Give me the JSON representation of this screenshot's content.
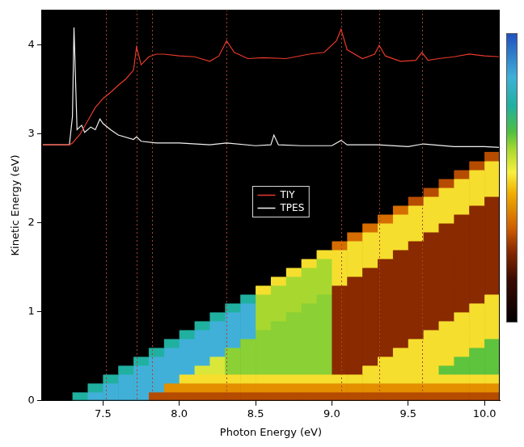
{
  "chart_data": {
    "type": "heatmap",
    "x_label": "Photon Energy (eV)",
    "y_label": "Kinetic Energy (eV)",
    "xlim": [
      7.1,
      10.1
    ],
    "xticks": [
      {
        "value": 7.5,
        "label": "7.5"
      },
      {
        "value": 8,
        "label": "8.0"
      },
      {
        "value": 8.5,
        "label": "8.5"
      },
      {
        "value": 9,
        "label": "9.0"
      },
      {
        "value": 9.5,
        "label": "9.5"
      },
      {
        "value": 10,
        "label": "10.0"
      }
    ],
    "ylim": [
      0,
      4.4
    ],
    "yticks": [
      0,
      1,
      2,
      3,
      4
    ],
    "grid": false,
    "legend": "center",
    "heatmap": {
      "x_bins": [
        7.3,
        7.4,
        7.5,
        7.6,
        7.7,
        7.8,
        7.9,
        8.0,
        8.1,
        8.2,
        8.3,
        8.4,
        8.5,
        8.6,
        8.7,
        8.8,
        8.9,
        9.0,
        9.1,
        9.2,
        9.3,
        9.4,
        9.5,
        9.6,
        9.7,
        9.8,
        9.9,
        10.0,
        10.1
      ],
      "y_bins": [
        0,
        0.1,
        0.2,
        0.3,
        0.4,
        0.5,
        0.6,
        0.7,
        0.8,
        0.9,
        1.0,
        1.1,
        1.2,
        1.3,
        1.4,
        1.5,
        1.6,
        1.7,
        1.8,
        1.9,
        2.0,
        2.1,
        2.2,
        2.3,
        2.4,
        2.5,
        2.6,
        2.7,
        2.8
      ],
      "z": [
        [
          0.75,
          0.85,
          0.85,
          0.85,
          0.85,
          0.3,
          0.3,
          0.3,
          0.3,
          0.3,
          0.3,
          0.3,
          0.3,
          0.3,
          0.3,
          0.3,
          0.3,
          0.3,
          0.3,
          0.3,
          0.3,
          0.3,
          0.3,
          0.3,
          0.3,
          0.3,
          0.3,
          0.3
        ],
        [
          0,
          0.75,
          0.85,
          0.85,
          0.85,
          0.85,
          0.4,
          0.4,
          0.4,
          0.4,
          0.4,
          0.4,
          0.4,
          0.4,
          0.4,
          0.4,
          0.4,
          0.4,
          0.4,
          0.4,
          0.4,
          0.4,
          0.4,
          0.4,
          0.4,
          0.4,
          0.4,
          0.4
        ],
        [
          0,
          0,
          0.75,
          0.85,
          0.85,
          0.85,
          0.85,
          0.5,
          0.5,
          0.5,
          0.5,
          0.5,
          0.5,
          0.5,
          0.5,
          0.5,
          0.5,
          0.5,
          0.5,
          0.5,
          0.5,
          0.5,
          0.5,
          0.5,
          0.5,
          0.5,
          0.5,
          0.5
        ],
        [
          0,
          0,
          0,
          0.75,
          0.85,
          0.85,
          0.85,
          0.85,
          0.55,
          0.55,
          0.62,
          0.62,
          0.62,
          0.62,
          0.62,
          0.62,
          0.62,
          0.25,
          0.25,
          0.5,
          0.5,
          0.5,
          0.5,
          0.5,
          0.65,
          0.65,
          0.65,
          0.65
        ],
        [
          0,
          0,
          0,
          0,
          0.75,
          0.85,
          0.85,
          0.85,
          0.85,
          0.55,
          0.62,
          0.62,
          0.62,
          0.62,
          0.62,
          0.62,
          0.62,
          0.25,
          0.25,
          0.25,
          0.5,
          0.5,
          0.5,
          0.5,
          0.5,
          0.65,
          0.65,
          0.65
        ],
        [
          0,
          0,
          0,
          0,
          0,
          0.75,
          0.85,
          0.85,
          0.85,
          0.85,
          0.62,
          0.62,
          0.62,
          0.62,
          0.62,
          0.62,
          0.62,
          0.25,
          0.25,
          0.25,
          0.25,
          0.5,
          0.5,
          0.5,
          0.5,
          0.5,
          0.65,
          0.65
        ],
        [
          0,
          0,
          0,
          0,
          0,
          0,
          0.75,
          0.85,
          0.85,
          0.85,
          0.85,
          0.62,
          0.62,
          0.62,
          0.62,
          0.62,
          0.62,
          0.25,
          0.25,
          0.25,
          0.25,
          0.25,
          0.5,
          0.5,
          0.5,
          0.5,
          0.5,
          0.65
        ],
        [
          0,
          0,
          0,
          0,
          0,
          0,
          0,
          0.75,
          0.85,
          0.85,
          0.85,
          0.85,
          0.62,
          0.62,
          0.62,
          0.62,
          0.62,
          0.25,
          0.25,
          0.25,
          0.25,
          0.25,
          0.25,
          0.5,
          0.5,
          0.5,
          0.5,
          0.5
        ],
        [
          0,
          0,
          0,
          0,
          0,
          0,
          0,
          0,
          0.75,
          0.85,
          0.85,
          0.85,
          0.6,
          0.62,
          0.62,
          0.62,
          0.62,
          0.25,
          0.25,
          0.25,
          0.25,
          0.25,
          0.25,
          0.25,
          0.5,
          0.5,
          0.5,
          0.5
        ],
        [
          0,
          0,
          0,
          0,
          0,
          0,
          0,
          0,
          0,
          0.75,
          0.85,
          0.85,
          0.6,
          0.6,
          0.62,
          0.62,
          0.62,
          0.25,
          0.25,
          0.25,
          0.25,
          0.25,
          0.25,
          0.25,
          0.25,
          0.5,
          0.5,
          0.5
        ],
        [
          0,
          0,
          0,
          0,
          0,
          0,
          0,
          0,
          0,
          0,
          0.75,
          0.85,
          0.6,
          0.6,
          0.6,
          0.62,
          0.62,
          0.25,
          0.25,
          0.25,
          0.25,
          0.25,
          0.25,
          0.25,
          0.25,
          0.25,
          0.5,
          0.5
        ],
        [
          0,
          0,
          0,
          0,
          0,
          0,
          0,
          0,
          0,
          0,
          0,
          0.75,
          0.6,
          0.6,
          0.6,
          0.6,
          0.62,
          0.25,
          0.25,
          0.25,
          0.25,
          0.25,
          0.25,
          0.25,
          0.25,
          0.25,
          0.25,
          0.5
        ],
        [
          0,
          0,
          0,
          0,
          0,
          0,
          0,
          0,
          0,
          0,
          0,
          0,
          0.5,
          0.6,
          0.6,
          0.6,
          0.6,
          0.25,
          0.25,
          0.25,
          0.25,
          0.25,
          0.25,
          0.25,
          0.25,
          0.25,
          0.25,
          0.25
        ],
        [
          0,
          0,
          0,
          0,
          0,
          0,
          0,
          0,
          0,
          0,
          0,
          0,
          0,
          0.5,
          0.6,
          0.6,
          0.6,
          0.5,
          0.25,
          0.25,
          0.25,
          0.25,
          0.25,
          0.25,
          0.25,
          0.25,
          0.25,
          0.25
        ],
        [
          0,
          0,
          0,
          0,
          0,
          0,
          0,
          0,
          0,
          0,
          0,
          0,
          0,
          0,
          0.5,
          0.6,
          0.6,
          0.5,
          0.5,
          0.25,
          0.25,
          0.25,
          0.25,
          0.25,
          0.25,
          0.25,
          0.25,
          0.25
        ],
        [
          0,
          0,
          0,
          0,
          0,
          0,
          0,
          0,
          0,
          0,
          0,
          0,
          0,
          0,
          0,
          0.5,
          0.6,
          0.5,
          0.5,
          0.5,
          0.25,
          0.25,
          0.25,
          0.25,
          0.25,
          0.25,
          0.25,
          0.25
        ],
        [
          0,
          0,
          0,
          0,
          0,
          0,
          0,
          0,
          0,
          0,
          0,
          0,
          0,
          0,
          0,
          0,
          0.5,
          0.5,
          0.5,
          0.5,
          0.5,
          0.25,
          0.25,
          0.25,
          0.25,
          0.25,
          0.25,
          0.25
        ],
        [
          0,
          0,
          0,
          0,
          0,
          0,
          0,
          0,
          0,
          0,
          0,
          0,
          0,
          0,
          0,
          0,
          0,
          0.35,
          0.5,
          0.5,
          0.5,
          0.5,
          0.25,
          0.25,
          0.25,
          0.25,
          0.25,
          0.25
        ],
        [
          0,
          0,
          0,
          0,
          0,
          0,
          0,
          0,
          0,
          0,
          0,
          0,
          0,
          0,
          0,
          0,
          0,
          0,
          0.35,
          0.5,
          0.5,
          0.5,
          0.5,
          0.25,
          0.25,
          0.25,
          0.25,
          0.25
        ],
        [
          0,
          0,
          0,
          0,
          0,
          0,
          0,
          0,
          0,
          0,
          0,
          0,
          0,
          0,
          0,
          0,
          0,
          0,
          0,
          0.35,
          0.5,
          0.5,
          0.5,
          0.5,
          0.25,
          0.25,
          0.25,
          0.25
        ],
        [
          0,
          0,
          0,
          0,
          0,
          0,
          0,
          0,
          0,
          0,
          0,
          0,
          0,
          0,
          0,
          0,
          0,
          0,
          0,
          0,
          0.35,
          0.5,
          0.5,
          0.5,
          0.5,
          0.25,
          0.25,
          0.25
        ],
        [
          0,
          0,
          0,
          0,
          0,
          0,
          0,
          0,
          0,
          0,
          0,
          0,
          0,
          0,
          0,
          0,
          0,
          0,
          0,
          0,
          0,
          0.35,
          0.5,
          0.5,
          0.5,
          0.5,
          0.25,
          0.25
        ],
        [
          0,
          0,
          0,
          0,
          0,
          0,
          0,
          0,
          0,
          0,
          0,
          0,
          0,
          0,
          0,
          0,
          0,
          0,
          0,
          0,
          0,
          0,
          0.3,
          0.5,
          0.5,
          0.5,
          0.5,
          0.25
        ],
        [
          0,
          0,
          0,
          0,
          0,
          0,
          0,
          0,
          0,
          0,
          0,
          0,
          0,
          0,
          0,
          0,
          0,
          0,
          0,
          0,
          0,
          0,
          0,
          0.3,
          0.5,
          0.5,
          0.5,
          0.5
        ],
        [
          0,
          0,
          0,
          0,
          0,
          0,
          0,
          0,
          0,
          0,
          0,
          0,
          0,
          0,
          0,
          0,
          0,
          0,
          0,
          0,
          0,
          0,
          0,
          0,
          0.3,
          0.5,
          0.5,
          0.5
        ],
        [
          0,
          0,
          0,
          0,
          0,
          0,
          0,
          0,
          0,
          0,
          0,
          0,
          0,
          0,
          0,
          0,
          0,
          0,
          0,
          0,
          0,
          0,
          0,
          0,
          0,
          0.3,
          0.5,
          0.5
        ],
        [
          0,
          0,
          0,
          0,
          0,
          0,
          0,
          0,
          0,
          0,
          0,
          0,
          0,
          0,
          0,
          0,
          0,
          0,
          0,
          0,
          0,
          0,
          0,
          0,
          0,
          0,
          0.3,
          0.5
        ],
        [
          0,
          0,
          0,
          0,
          0,
          0,
          0,
          0,
          0,
          0,
          0,
          0,
          0,
          0,
          0,
          0,
          0,
          0,
          0,
          0,
          0,
          0,
          0,
          0,
          0,
          0,
          0,
          0.3
        ]
      ],
      "colorbar_lim": [
        0,
        1
      ]
    },
    "reference_lines": {
      "x": [
        7.52,
        7.72,
        7.82,
        8.31,
        9.06,
        9.31,
        9.59
      ],
      "color": "#a8442e",
      "line_style": "dotted"
    },
    "series": [
      {
        "name": "TIY",
        "type": "line",
        "color": "#e8392a",
        "x": [
          7.1,
          7.2,
          7.28,
          7.3,
          7.35,
          7.4,
          7.45,
          7.5,
          7.55,
          7.6,
          7.65,
          7.7,
          7.72,
          7.75,
          7.8,
          7.85,
          7.9,
          8.0,
          8.1,
          8.2,
          8.26,
          8.31,
          8.36,
          8.45,
          8.55,
          8.7,
          8.85,
          8.95,
          9.03,
          9.06,
          9.1,
          9.2,
          9.28,
          9.31,
          9.35,
          9.45,
          9.55,
          9.59,
          9.63,
          9.7,
          9.8,
          9.9,
          10.0,
          10.1
        ],
        "values": [
          2.88,
          2.88,
          2.88,
          2.9,
          3.0,
          3.15,
          3.3,
          3.4,
          3.47,
          3.55,
          3.62,
          3.72,
          3.98,
          3.78,
          3.87,
          3.9,
          3.9,
          3.88,
          3.87,
          3.82,
          3.88,
          4.05,
          3.92,
          3.85,
          3.86,
          3.85,
          3.9,
          3.92,
          4.05,
          4.18,
          3.95,
          3.85,
          3.9,
          4.0,
          3.88,
          3.82,
          3.83,
          3.92,
          3.83,
          3.85,
          3.87,
          3.9,
          3.88,
          3.87
        ]
      },
      {
        "name": "TPES",
        "type": "line",
        "color": "#f2f2f2",
        "x": [
          7.1,
          7.2,
          7.28,
          7.3,
          7.31,
          7.33,
          7.36,
          7.38,
          7.42,
          7.45,
          7.48,
          7.5,
          7.55,
          7.6,
          7.7,
          7.72,
          7.75,
          7.85,
          8.0,
          8.2,
          8.31,
          8.5,
          8.6,
          8.62,
          8.65,
          8.8,
          9.0,
          9.06,
          9.1,
          9.3,
          9.5,
          9.6,
          9.8,
          10.0,
          10.1
        ],
        "values": [
          2.88,
          2.88,
          2.88,
          3.2,
          4.2,
          3.05,
          3.1,
          3.02,
          3.08,
          3.05,
          3.17,
          3.12,
          3.05,
          2.99,
          2.94,
          2.97,
          2.92,
          2.9,
          2.9,
          2.88,
          2.9,
          2.87,
          2.88,
          2.99,
          2.88,
          2.87,
          2.87,
          2.93,
          2.88,
          2.88,
          2.86,
          2.89,
          2.86,
          2.86,
          2.85
        ]
      }
    ]
  }
}
